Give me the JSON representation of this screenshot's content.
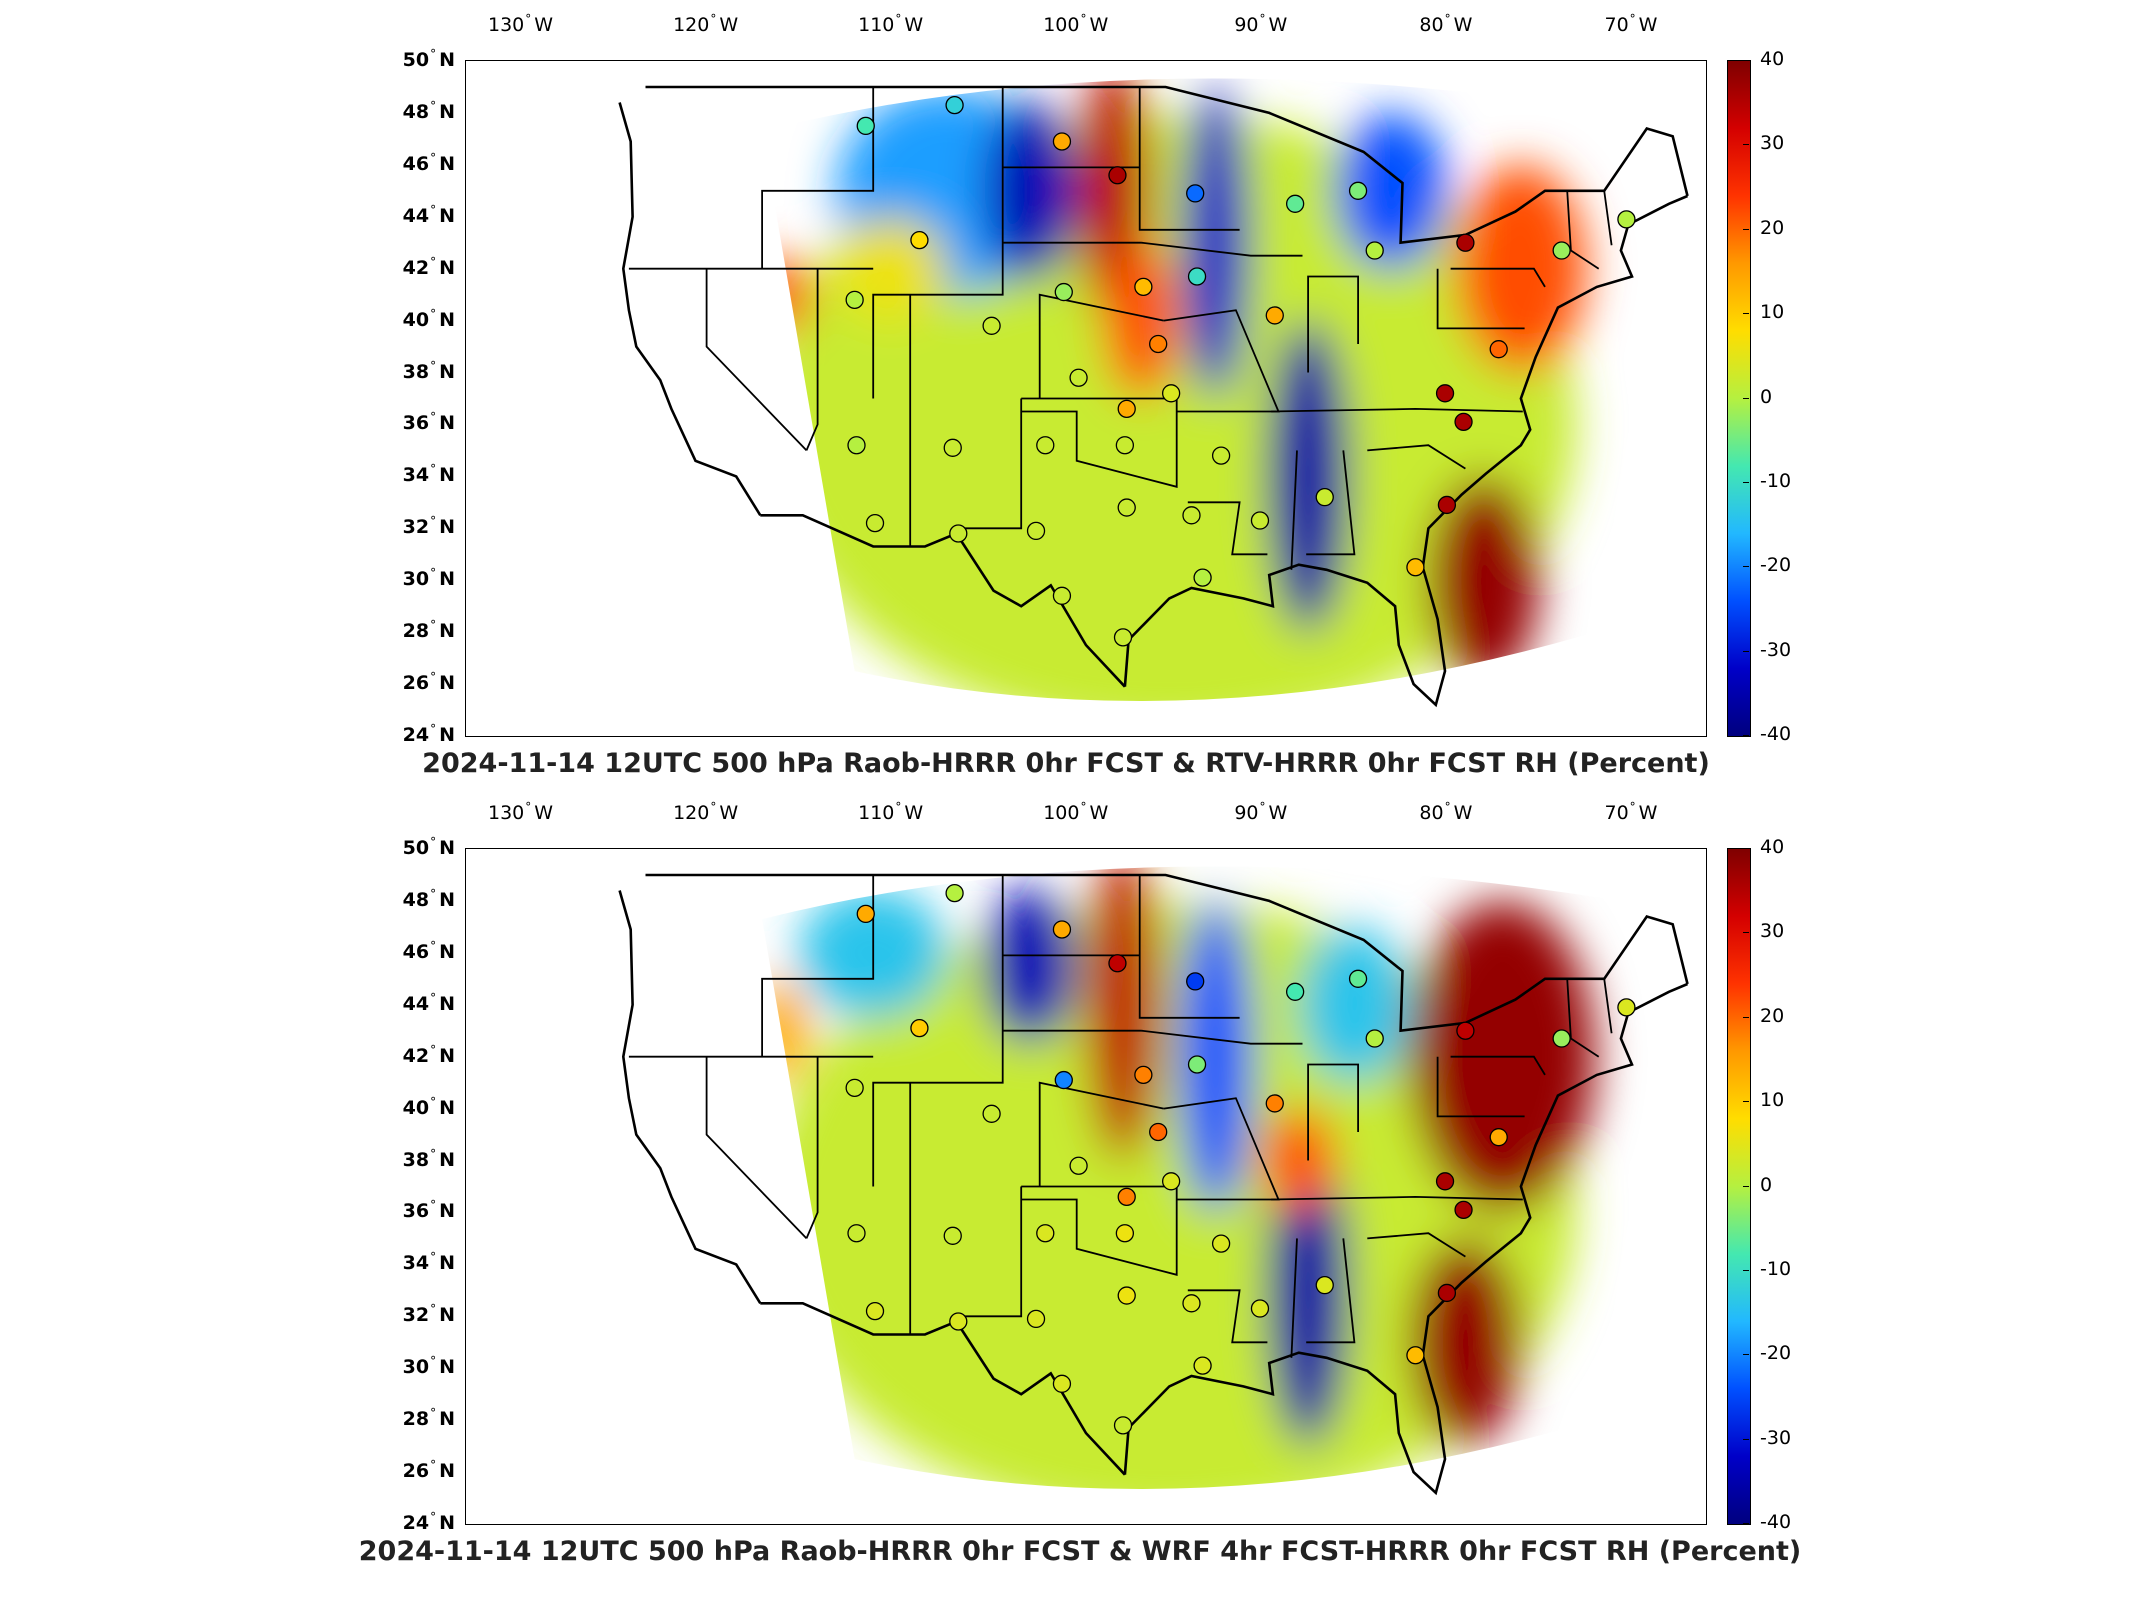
{
  "colorbar": {
    "min": -40,
    "max": 40,
    "ticks": [
      "40",
      "30",
      "20",
      "10",
      "0",
      "-10",
      "-20",
      "-30",
      "-40"
    ],
    "colors": [
      "#7f0000",
      "#d40000",
      "#ff3300",
      "#ff9900",
      "#ffdd00",
      "#b5f040",
      "#44e8b0",
      "#22b8ff",
      "#0050ff",
      "#0000c8",
      "#00007f"
    ]
  },
  "axes": {
    "lon_ticks": [
      {
        "value": "130",
        "hemi": "W"
      },
      {
        "value": "120",
        "hemi": "W"
      },
      {
        "value": "110",
        "hemi": "W"
      },
      {
        "value": "100",
        "hemi": "W"
      },
      {
        "value": "90",
        "hemi": "W"
      },
      {
        "value": "80",
        "hemi": "W"
      },
      {
        "value": "70",
        "hemi": "W"
      }
    ],
    "lat_ticks": [
      {
        "value": "50",
        "hemi": "N"
      },
      {
        "value": "48",
        "hemi": "N"
      },
      {
        "value": "46",
        "hemi": "N"
      },
      {
        "value": "44",
        "hemi": "N"
      },
      {
        "value": "42",
        "hemi": "N"
      },
      {
        "value": "40",
        "hemi": "N"
      },
      {
        "value": "38",
        "hemi": "N"
      },
      {
        "value": "36",
        "hemi": "N"
      },
      {
        "value": "34",
        "hemi": "N"
      },
      {
        "value": "32",
        "hemi": "N"
      },
      {
        "value": "30",
        "hemi": "N"
      },
      {
        "value": "28",
        "hemi": "N"
      },
      {
        "value": "26",
        "hemi": "N"
      },
      {
        "value": "24",
        "hemi": "N"
      }
    ]
  },
  "panels": [
    {
      "title": "2024-11-14 12UTC 500 hPa Raob-HRRR 0hr FCST & RTV-HRRR 0hr FCST RH (Percent)",
      "regions": [
        {
          "lon": -95,
          "lat": 36,
          "rx": 22,
          "ry": 12,
          "value": 2
        },
        {
          "lon": -107,
          "lat": 45,
          "rx": 6,
          "ry": 4,
          "value": -18
        },
        {
          "lon": -102.5,
          "lat": 45,
          "rx": 2.5,
          "ry": 3.5,
          "value": -34
        },
        {
          "lon": -98,
          "lat": 45,
          "rx": 2,
          "ry": 5,
          "value": 34
        },
        {
          "lon": -96.5,
          "lat": 40,
          "rx": 2,
          "ry": 3,
          "value": 22
        },
        {
          "lon": -92.5,
          "lat": 43,
          "rx": 1.8,
          "ry": 6,
          "value": -32
        },
        {
          "lon": -87.5,
          "lat": 34,
          "rx": 2.2,
          "ry": 6,
          "value": -36
        },
        {
          "lon": -83,
          "lat": 45,
          "rx": 3,
          "ry": 3,
          "value": -24
        },
        {
          "lon": -78,
          "lat": 30,
          "rx": 3,
          "ry": 4,
          "value": 38
        },
        {
          "lon": -76,
          "lat": 42,
          "rx": 3.5,
          "ry": 4,
          "value": 22
        },
        {
          "lon": -116,
          "lat": 41,
          "rx": 1.5,
          "ry": 1.5,
          "value": 24
        },
        {
          "lon": -110,
          "lat": 42,
          "rx": 3,
          "ry": 2,
          "value": 6
        }
      ],
      "stations": [
        {
          "lon": -111.4,
          "lat": 47.5,
          "value": -8
        },
        {
          "lon": -106.6,
          "lat": 48.3,
          "value": -12
        },
        {
          "lon": -100.8,
          "lat": 46.9,
          "value": 14
        },
        {
          "lon": -97.8,
          "lat": 45.6,
          "value": 36
        },
        {
          "lon": -93.6,
          "lat": 44.9,
          "value": -22
        },
        {
          "lon": -88.2,
          "lat": 44.5,
          "value": -6
        },
        {
          "lon": -84.8,
          "lat": 45.0,
          "value": -4
        },
        {
          "lon": -83.9,
          "lat": 42.7,
          "value": 0
        },
        {
          "lon": -79.0,
          "lat": 43.0,
          "value": 36
        },
        {
          "lon": -73.8,
          "lat": 42.7,
          "value": -2
        },
        {
          "lon": -70.3,
          "lat": 43.9,
          "value": 0
        },
        {
          "lon": -108.5,
          "lat": 43.1,
          "value": 8
        },
        {
          "lon": -112.0,
          "lat": 40.8,
          "value": 0
        },
        {
          "lon": -100.7,
          "lat": 41.1,
          "value": -2
        },
        {
          "lon": -96.4,
          "lat": 41.3,
          "value": 12
        },
        {
          "lon": -93.5,
          "lat": 41.7,
          "value": -10
        },
        {
          "lon": -89.3,
          "lat": 40.2,
          "value": 14
        },
        {
          "lon": -95.6,
          "lat": 39.1,
          "value": 18
        },
        {
          "lon": -104.6,
          "lat": 39.8,
          "value": 2
        },
        {
          "lon": -99.9,
          "lat": 37.8,
          "value": 2
        },
        {
          "lon": -94.9,
          "lat": 37.2,
          "value": 4
        },
        {
          "lon": -97.3,
          "lat": 36.6,
          "value": 14
        },
        {
          "lon": -80.1,
          "lat": 37.2,
          "value": 36
        },
        {
          "lon": -77.2,
          "lat": 38.9,
          "value": 20
        },
        {
          "lon": -79.1,
          "lat": 36.1,
          "value": 36
        },
        {
          "lon": -106.7,
          "lat": 35.1,
          "value": 2
        },
        {
          "lon": -111.9,
          "lat": 35.2,
          "value": 0
        },
        {
          "lon": -101.7,
          "lat": 35.2,
          "value": 2
        },
        {
          "lon": -97.4,
          "lat": 35.2,
          "value": 2
        },
        {
          "lon": -92.2,
          "lat": 34.8,
          "value": 2
        },
        {
          "lon": -86.6,
          "lat": 33.2,
          "value": 2
        },
        {
          "lon": -90.1,
          "lat": 32.3,
          "value": 2
        },
        {
          "lon": -93.8,
          "lat": 32.5,
          "value": 2
        },
        {
          "lon": -97.3,
          "lat": 32.8,
          "value": 2
        },
        {
          "lon": -102.2,
          "lat": 31.9,
          "value": 2
        },
        {
          "lon": -106.4,
          "lat": 31.8,
          "value": 2
        },
        {
          "lon": -110.9,
          "lat": 32.2,
          "value": 2
        },
        {
          "lon": -80.0,
          "lat": 32.9,
          "value": 36
        },
        {
          "lon": -81.7,
          "lat": 30.5,
          "value": 12
        },
        {
          "lon": -93.2,
          "lat": 30.1,
          "value": 0
        },
        {
          "lon": -97.5,
          "lat": 27.8,
          "value": 2
        },
        {
          "lon": -100.8,
          "lat": 29.4,
          "value": 2
        }
      ]
    },
    {
      "title": "2024-11-14 12UTC 500 hPa Raob-HRRR 0hr FCST & WRF 4hr FCST-HRRR 0hr FCST RH (Percent)",
      "regions": [
        {
          "lon": -95,
          "lat": 36,
          "rx": 22,
          "ry": 12,
          "value": 2
        },
        {
          "lon": -111,
          "lat": 46,
          "rx": 4,
          "ry": 2.5,
          "value": -14
        },
        {
          "lon": -102.5,
          "lat": 45.5,
          "rx": 2.5,
          "ry": 3,
          "value": -34
        },
        {
          "lon": -97.5,
          "lat": 44,
          "rx": 2,
          "ry": 6,
          "value": 34
        },
        {
          "lon": -92.5,
          "lat": 42,
          "rx": 2,
          "ry": 6,
          "value": -24
        },
        {
          "lon": -87.5,
          "lat": 33,
          "rx": 2.2,
          "ry": 6,
          "value": -36
        },
        {
          "lon": -85,
          "lat": 44,
          "rx": 3,
          "ry": 3,
          "value": -14
        },
        {
          "lon": -77,
          "lat": 42,
          "rx": 5,
          "ry": 6,
          "value": 38
        },
        {
          "lon": -79,
          "lat": 31,
          "rx": 3,
          "ry": 4,
          "value": 38
        },
        {
          "lon": -88,
          "lat": 38,
          "rx": 2,
          "ry": 2,
          "value": 22
        },
        {
          "lon": -116,
          "lat": 43,
          "rx": 1.5,
          "ry": 2,
          "value": 14
        }
      ],
      "stations": [
        {
          "lon": -111.4,
          "lat": 47.5,
          "value": 14
        },
        {
          "lon": -106.6,
          "lat": 48.3,
          "value": 0
        },
        {
          "lon": -100.8,
          "lat": 46.9,
          "value": 14
        },
        {
          "lon": -97.8,
          "lat": 45.6,
          "value": 34
        },
        {
          "lon": -93.6,
          "lat": 44.9,
          "value": -26
        },
        {
          "lon": -88.2,
          "lat": 44.5,
          "value": -8
        },
        {
          "lon": -84.8,
          "lat": 45.0,
          "value": -6
        },
        {
          "lon": -83.9,
          "lat": 42.7,
          "value": 0
        },
        {
          "lon": -79.0,
          "lat": 43.0,
          "value": 34
        },
        {
          "lon": -73.8,
          "lat": 42.7,
          "value": -2
        },
        {
          "lon": -70.3,
          "lat": 43.9,
          "value": 4
        },
        {
          "lon": -108.5,
          "lat": 43.1,
          "value": 10
        },
        {
          "lon": -112.0,
          "lat": 40.8,
          "value": 2
        },
        {
          "lon": -100.7,
          "lat": 41.1,
          "value": -20
        },
        {
          "lon": -96.4,
          "lat": 41.3,
          "value": 18
        },
        {
          "lon": -93.5,
          "lat": 41.7,
          "value": -4
        },
        {
          "lon": -89.3,
          "lat": 40.2,
          "value": 18
        },
        {
          "lon": -95.6,
          "lat": 39.1,
          "value": 20
        },
        {
          "lon": -104.6,
          "lat": 39.8,
          "value": 2
        },
        {
          "lon": -99.9,
          "lat": 37.8,
          "value": 2
        },
        {
          "lon": -94.9,
          "lat": 37.2,
          "value": 4
        },
        {
          "lon": -97.3,
          "lat": 36.6,
          "value": 18
        },
        {
          "lon": -80.1,
          "lat": 37.2,
          "value": 36
        },
        {
          "lon": -77.2,
          "lat": 38.9,
          "value": 14
        },
        {
          "lon": -79.1,
          "lat": 36.1,
          "value": 36
        },
        {
          "lon": -106.7,
          "lat": 35.1,
          "value": 2
        },
        {
          "lon": -111.9,
          "lat": 35.2,
          "value": 2
        },
        {
          "lon": -101.7,
          "lat": 35.2,
          "value": 4
        },
        {
          "lon": -97.4,
          "lat": 35.2,
          "value": 6
        },
        {
          "lon": -92.2,
          "lat": 34.8,
          "value": 4
        },
        {
          "lon": -86.6,
          "lat": 33.2,
          "value": 4
        },
        {
          "lon": -90.1,
          "lat": 32.3,
          "value": 4
        },
        {
          "lon": -93.8,
          "lat": 32.5,
          "value": 4
        },
        {
          "lon": -97.3,
          "lat": 32.8,
          "value": 6
        },
        {
          "lon": -102.2,
          "lat": 31.9,
          "value": 4
        },
        {
          "lon": -106.4,
          "lat": 31.8,
          "value": 4
        },
        {
          "lon": -110.9,
          "lat": 32.2,
          "value": 4
        },
        {
          "lon": -80.0,
          "lat": 32.9,
          "value": 36
        },
        {
          "lon": -81.7,
          "lat": 30.5,
          "value": 12
        },
        {
          "lon": -93.2,
          "lat": 30.1,
          "value": 4
        },
        {
          "lon": -97.5,
          "lat": 27.8,
          "value": 2
        },
        {
          "lon": -100.8,
          "lat": 29.4,
          "value": 4
        }
      ]
    }
  ]
}
